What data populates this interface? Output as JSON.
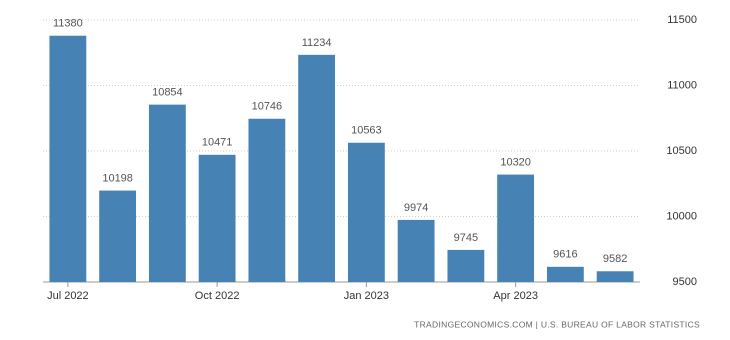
{
  "chart_data": {
    "type": "bar",
    "source": "TRADINGECONOMICS.COM | U.S. BUREAU OF LABOR STATISTICS",
    "categories": [
      "Jul 2022",
      null,
      null,
      "Oct 2022",
      null,
      null,
      "Jan 2023",
      null,
      null,
      "Apr 2023",
      null,
      null
    ],
    "values": [
      11380,
      10198,
      10854,
      10471,
      10746,
      11234,
      10563,
      9974,
      9745,
      10320,
      9616,
      9582
    ],
    "color": "#4682b4",
    "ylim": [
      9500,
      11500
    ],
    "yticks": [
      9500,
      10000,
      10500,
      11000,
      11500
    ],
    "grid": true
  }
}
